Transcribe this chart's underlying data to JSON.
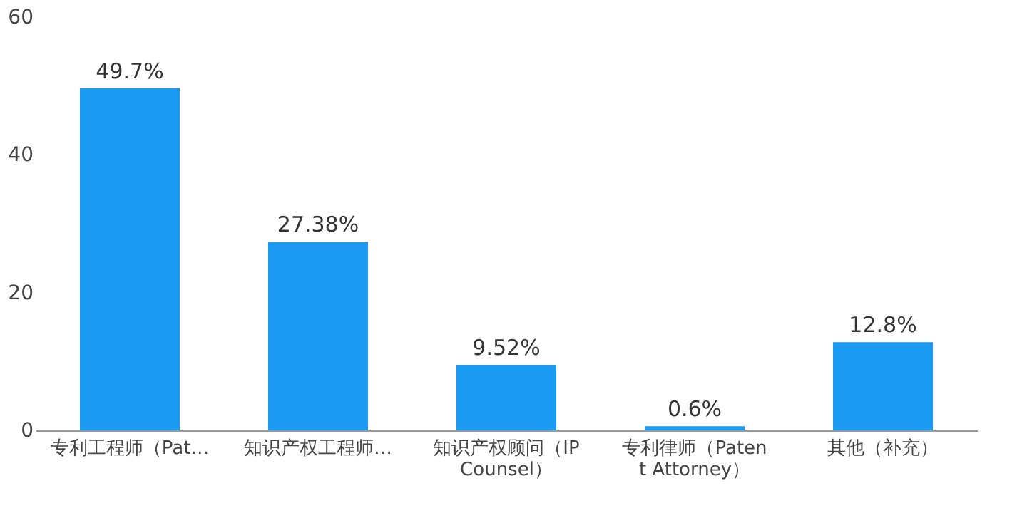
{
  "chart_data": {
    "type": "bar",
    "categories": [
      "专利工程师（Pat…",
      "知识产权工程师…",
      "知识产权顾问（IP Counsel）",
      "专利律师（Patent Attorney）",
      "其他（补充）"
    ],
    "values": [
      49.7,
      27.38,
      9.52,
      0.6,
      12.8
    ],
    "value_labels": [
      "49.7%",
      "27.38%",
      "9.52%",
      "0.6%",
      "12.8%"
    ],
    "color": "#1a9af0",
    "ylim": [
      0,
      60
    ],
    "yticks": [
      0,
      20,
      40,
      60
    ],
    "grid": false
  }
}
